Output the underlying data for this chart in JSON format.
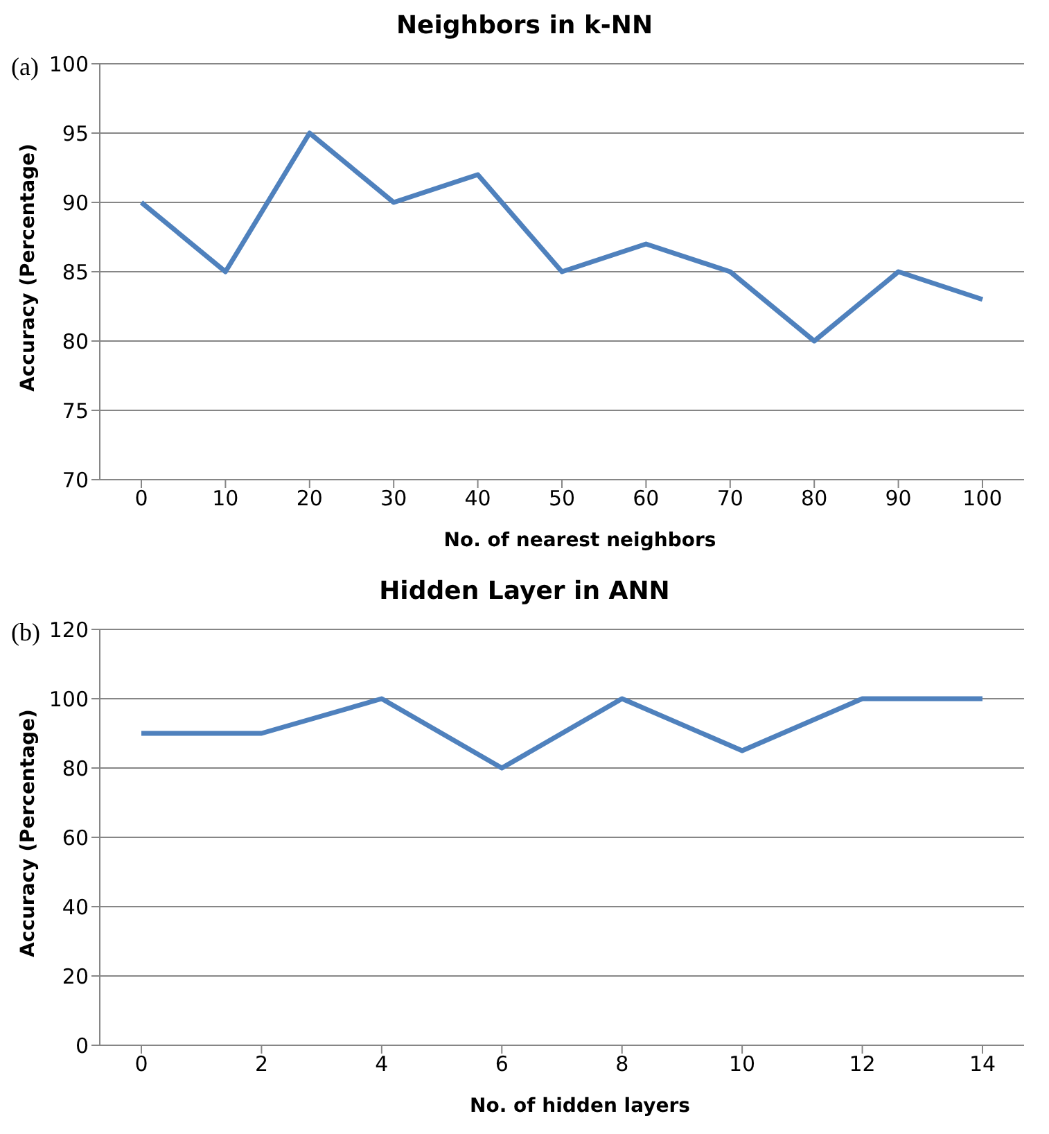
{
  "chart_data": [
    {
      "type": "line",
      "title": "Neighbors in k-NN",
      "xlabel": "No. of nearest neighbors",
      "ylabel": "Accuracy (Percentage)",
      "annotations": [
        "(a)"
      ],
      "categories": [
        "0",
        "10",
        "20",
        "30",
        "40",
        "50",
        "60",
        "70",
        "80",
        "90",
        "100"
      ],
      "series": [
        {
          "color": "#4f81bd",
          "values": [
            90,
            85,
            95,
            90,
            92,
            85,
            87,
            85,
            80,
            85,
            83
          ]
        }
      ],
      "ylim": [
        70,
        100
      ],
      "yticks": [
        70,
        75,
        80,
        85,
        90,
        95,
        100
      ],
      "grid": "y",
      "legend": false,
      "marker": "none",
      "line_style": "solid"
    },
    {
      "type": "line",
      "title": "Hidden Layer in ANN",
      "xlabel": "No. of hidden layers",
      "ylabel": "Accuracy (Percentage)",
      "annotations": [
        "(b)"
      ],
      "categories": [
        "0",
        "2",
        "4",
        "6",
        "8",
        "10",
        "12",
        "14"
      ],
      "series": [
        {
          "color": "#4f81bd",
          "values": [
            90,
            90,
            100,
            80,
            100,
            85,
            100,
            100
          ]
        }
      ],
      "ylim": [
        0,
        120
      ],
      "yticks": [
        0,
        20,
        40,
        60,
        80,
        100,
        120
      ],
      "grid": "y",
      "legend": false,
      "marker": "none",
      "line_style": "solid"
    }
  ]
}
